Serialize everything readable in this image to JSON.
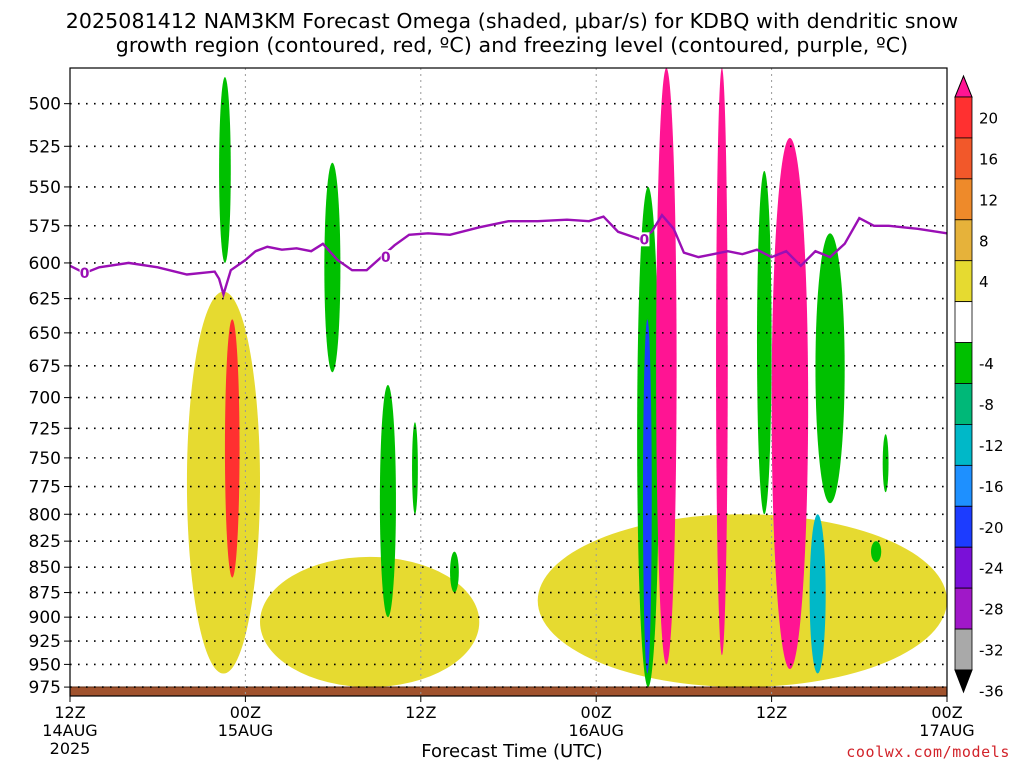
{
  "header": {
    "title_line1": "2025081412 NAM3KM Forecast Omega (shaded, μbar/s) for KDBQ with dendritic snow",
    "title_line2": "growth region (contoured, red, ºC) and freezing level (contoured, purple, ºC)"
  },
  "footer": {
    "credit": "coolwx.com/models",
    "year": "2025"
  },
  "chart_data": {
    "type": "heatmap",
    "title": "2025081412 NAM3KM Forecast Omega (shaded, μbar/s) for KDBQ with dendritic snow growth region (contoured, red, ºC) and freezing level (contoured, purple, ºC)",
    "xlabel": "Forecast Time (UTC)",
    "ylabel": "",
    "x_ticks": [
      {
        "hour": 0,
        "label": "12Z",
        "sub": "14AUG"
      },
      {
        "hour": 12,
        "label": "00Z",
        "sub": "15AUG"
      },
      {
        "hour": 24,
        "label": "12Z",
        "sub": ""
      },
      {
        "hour": 36,
        "label": "00Z",
        "sub": "16AUG"
      },
      {
        "hour": 48,
        "label": "12Z",
        "sub": ""
      },
      {
        "hour": 60,
        "label": "00Z",
        "sub": "17AUG"
      }
    ],
    "xlim": [
      0,
      60
    ],
    "y_ticks": [
      500,
      525,
      550,
      575,
      600,
      625,
      650,
      675,
      700,
      725,
      750,
      775,
      800,
      825,
      850,
      875,
      900,
      925,
      950,
      975
    ],
    "ylim": [
      480,
      985
    ],
    "y_scale": "log-pressure",
    "grid": true,
    "colorbar": {
      "labels": [
        "20",
        "16",
        "12",
        "8",
        "4",
        "-4",
        "-8",
        "-12",
        "-16",
        "-20",
        "-24",
        "-28",
        "-32",
        "-36"
      ],
      "colors": [
        "#ff1493",
        "#ff3030",
        "#f2582a",
        "#ee8a2a",
        "#e6b23a",
        "#e6da30",
        "#ffffff",
        "#00c000",
        "#00b878",
        "#00b8c8",
        "#1e90ff",
        "#1c3cff",
        "#7a10d8",
        "#a018c8",
        "#a9a9a9",
        "#000000"
      ]
    },
    "freezing_level": {
      "label": "0",
      "x": [
        0,
        1,
        2,
        4,
        6,
        8,
        9.9,
        10.2,
        10.5,
        11,
        12,
        12.7,
        13.5,
        14.5,
        15.5,
        16.5,
        17.3,
        18.3,
        19.3,
        20.3,
        21.3,
        22.2,
        23.2,
        24.5,
        26,
        28,
        30,
        32,
        34,
        35.5,
        36.5,
        37.5,
        39,
        39.8,
        40.5,
        41.3,
        42,
        43,
        44,
        45,
        46,
        47,
        48,
        49,
        50,
        51,
        52,
        53,
        54,
        55,
        56,
        57,
        58,
        60
      ],
      "y": [
        602,
        607,
        603,
        600,
        603,
        608,
        606,
        611,
        622,
        605,
        598,
        592,
        589,
        591,
        590,
        592,
        587,
        598,
        605,
        605,
        596,
        588,
        581,
        580,
        581,
        576,
        572,
        572,
        571,
        572,
        569,
        579,
        584,
        579,
        568,
        577,
        593,
        596,
        594,
        592,
        594,
        591,
        596,
        592,
        602,
        592,
        596,
        587,
        570,
        575,
        575,
        576,
        577,
        580
      ]
    },
    "dgz_region": "not present",
    "omega_areas": [
      {
        "value": -8,
        "x": [
          10.2,
          11.0
        ],
        "y": [
          485,
          600
        ]
      },
      {
        "value": -8,
        "x": [
          17.4,
          18.5
        ],
        "y": [
          535,
          680
        ]
      },
      {
        "value": 4,
        "x": [
          8.0,
          13.0
        ],
        "y": [
          620,
          960
        ]
      },
      {
        "value": 16,
        "x": [
          10.6,
          11.6
        ],
        "y": [
          640,
          860
        ]
      },
      {
        "value": 4,
        "x": [
          13.0,
          28.0
        ],
        "y": [
          840,
          975
        ]
      },
      {
        "value": -8,
        "x": [
          21.2,
          22.3
        ],
        "y": [
          690,
          900
        ]
      },
      {
        "value": -8,
        "x": [
          23.4,
          23.8
        ],
        "y": [
          720,
          800
        ]
      },
      {
        "value": -8,
        "x": [
          26.0,
          26.6
        ],
        "y": [
          835,
          875
        ]
      },
      {
        "value": -8,
        "x": [
          47.0,
          48.0
        ],
        "y": [
          540,
          800
        ]
      },
      {
        "value": 4,
        "x": [
          32.0,
          60.0
        ],
        "y": [
          800,
          975
        ]
      },
      {
        "value": -8,
        "x": [
          38.8,
          40.3
        ],
        "y": [
          550,
          975
        ]
      },
      {
        "value": -24,
        "x": [
          39.2,
          39.8
        ],
        "y": [
          640,
          960
        ]
      },
      {
        "value": 20,
        "x": [
          40.1,
          41.5
        ],
        "y": [
          480,
          950
        ]
      },
      {
        "value": 20,
        "x": [
          44.2,
          45.0
        ],
        "y": [
          480,
          940
        ]
      },
      {
        "value": 20,
        "x": [
          48.0,
          50.5
        ],
        "y": [
          520,
          955
        ]
      },
      {
        "value": -16,
        "x": [
          50.6,
          51.7
        ],
        "y": [
          800,
          960
        ]
      },
      {
        "value": -8,
        "x": [
          51.0,
          53.0
        ],
        "y": [
          580,
          790
        ]
      },
      {
        "value": -8,
        "x": [
          55.6,
          56.0
        ],
        "y": [
          730,
          780
        ]
      },
      {
        "value": -8,
        "x": [
          54.8,
          55.5
        ],
        "y": [
          825,
          845
        ]
      }
    ]
  }
}
